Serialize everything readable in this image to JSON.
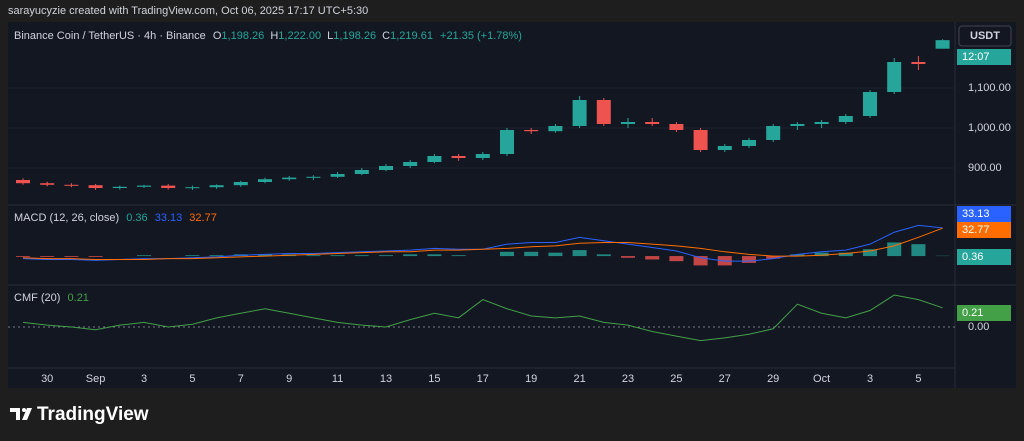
{
  "header": "sarayucyzie created with TradingView.com, Oct 06, 2025 17:17 UTC+5:30",
  "footer": "TradingView",
  "chart_data": [
    {
      "type": "candlestick",
      "title": "Binance Coin / TetherUS · 4h · Binance",
      "ohlc_keys": [
        "O",
        "H",
        "L",
        "C"
      ],
      "ohlc_values": [
        "1,198.26",
        "1,222.00",
        "1,198.26",
        "1,219.61"
      ],
      "change": "+21.35 (+1.78%)",
      "currency": "USDT",
      "countdown": "12:07",
      "categories": [
        null,
        "30",
        null,
        "Sep",
        null,
        "3",
        null,
        "5",
        null,
        "7",
        null,
        "9",
        null,
        "11",
        null,
        "13",
        null,
        "15",
        null,
        "17",
        null,
        "19",
        null,
        "21",
        null,
        "23",
        null,
        "25",
        null,
        "27",
        null,
        "29",
        null,
        "Oct",
        null,
        "3",
        null,
        "5",
        null
      ],
      "open": [
        870,
        862,
        858,
        857,
        850,
        853,
        856,
        850,
        852,
        857,
        865,
        872,
        876,
        878,
        885,
        895,
        905,
        915,
        930,
        925,
        935,
        995,
        992,
        1005,
        1070,
        1010,
        1015,
        1010,
        995,
        945,
        955,
        970,
        1005,
        1010,
        1015,
        1030,
        1090,
        1165,
        1198.26
      ],
      "high": [
        874,
        866,
        862,
        860,
        856,
        858,
        860,
        856,
        859,
        868,
        876,
        880,
        882,
        890,
        900,
        910,
        920,
        935,
        935,
        940,
        1000,
        1000,
        1010,
        1080,
        1075,
        1025,
        1025,
        1015,
        1000,
        960,
        975,
        1010,
        1015,
        1020,
        1035,
        1095,
        1175,
        1180,
        1222
      ],
      "low": [
        858,
        854,
        852,
        845,
        846,
        850,
        846,
        845,
        848,
        853,
        862,
        868,
        870,
        875,
        882,
        892,
        900,
        912,
        918,
        920,
        930,
        985,
        988,
        1000,
        1005,
        1000,
        1005,
        990,
        940,
        940,
        950,
        965,
        995,
        1000,
        1010,
        1025,
        1085,
        1145,
        1198.26
      ],
      "close": [
        862,
        858,
        857,
        850,
        853,
        856,
        850,
        852,
        857,
        865,
        872,
        876,
        878,
        885,
        895,
        905,
        915,
        930,
        925,
        935,
        995,
        992,
        1005,
        1070,
        1010,
        1015,
        1010,
        995,
        945,
        955,
        970,
        1005,
        1010,
        1015,
        1030,
        1090,
        1165,
        1160,
        1219.61
      ],
      "up_color": "#26a69a",
      "down_color": "#ef5350",
      "ylim": [
        807.5,
        1250
      ],
      "yticks": [
        {
          "value": 900,
          "label": "900.00"
        },
        {
          "value": 1000,
          "label": "1,000.00"
        },
        {
          "value": 1100,
          "label": "1,100.00"
        }
      ],
      "grid": true
    },
    {
      "type": "macd",
      "title": "MACD (12, 26, close)",
      "series": [
        {
          "name": "Histogram",
          "color": "#26a69a",
          "negative_color": "#ef5350",
          "values": [
            -1,
            -1,
            -1,
            -1,
            0,
            1,
            0,
            1,
            1,
            2,
            2,
            2,
            1,
            1,
            1,
            1,
            2,
            2,
            1,
            0,
            5,
            5,
            4,
            7,
            2,
            -2,
            -4,
            -6,
            -11,
            -11,
            -8,
            -3,
            2,
            4,
            4,
            8,
            16,
            14,
            0.36
          ]
        },
        {
          "name": "MACD",
          "color": "#2962ff",
          "values": [
            -3,
            -4,
            -4,
            -5,
            -4,
            -3,
            -3,
            -2,
            -1,
            1,
            2,
            3,
            3,
            4,
            5,
            6,
            7,
            9,
            8,
            8,
            14,
            16,
            16,
            22,
            18,
            14,
            10,
            6,
            -2,
            -6,
            -6,
            -3,
            2,
            5,
            7,
            14,
            28,
            36,
            33.13
          ]
        },
        {
          "name": "Signal",
          "color": "#ff6d00",
          "values": [
            -2,
            -3,
            -3,
            -4,
            -4,
            -4,
            -3,
            -3,
            -2,
            -1,
            0,
            1,
            2,
            3,
            4,
            5,
            5,
            7,
            7,
            8,
            9,
            11,
            12,
            15,
            16,
            16,
            14,
            12,
            9,
            5,
            2,
            0,
            0,
            1,
            3,
            6,
            12,
            22,
            32.77
          ]
        }
      ],
      "ylim": [
        -34,
        60
      ]
    },
    {
      "type": "line",
      "title": "CMF (20)",
      "color": "#43a047",
      "values": [
        0.05,
        0.02,
        0.0,
        -0.03,
        0.02,
        0.05,
        0.0,
        0.03,
        0.1,
        0.15,
        0.2,
        0.15,
        0.1,
        0.05,
        0.02,
        0.0,
        0.08,
        0.15,
        0.1,
        0.3,
        0.2,
        0.12,
        0.1,
        0.12,
        0.05,
        0.02,
        -0.05,
        -0.1,
        -0.15,
        -0.12,
        -0.08,
        -0.02,
        0.25,
        0.15,
        0.1,
        0.18,
        0.35,
        0.3,
        0.21
      ],
      "ylim": [
        -0.45,
        0.46
      ],
      "yticks": [
        {
          "value": 0,
          "label": "0.00"
        }
      ]
    }
  ]
}
